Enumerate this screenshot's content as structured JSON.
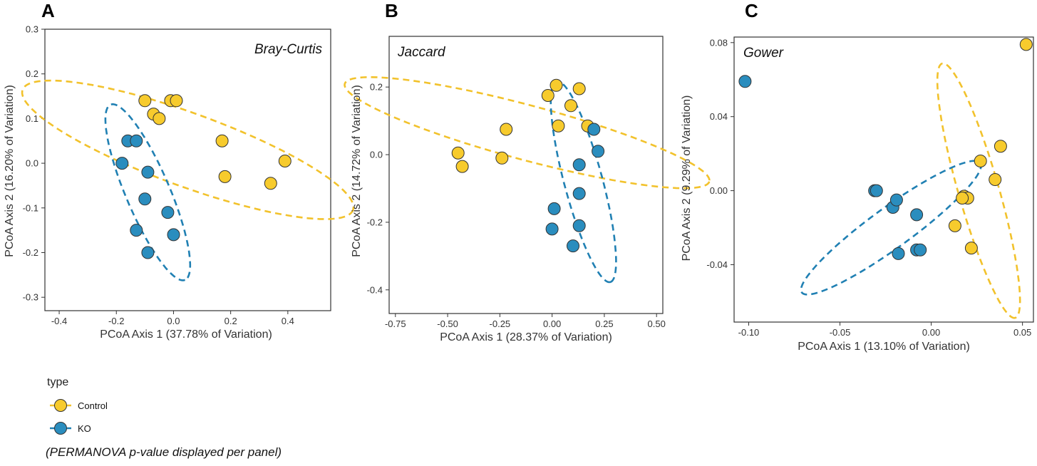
{
  "colors": {
    "control": "#F7CB2D",
    "ko": "#2A8DBE",
    "control_line": "#F2C22C",
    "ko_line": "#2080B3",
    "outline": "#333333"
  },
  "legend": {
    "title": "type",
    "entries": [
      {
        "label": "Control",
        "group": "control"
      },
      {
        "label": "KO",
        "group": "ko"
      }
    ]
  },
  "footnote": "(PERMANOVA p-value displayed per panel)",
  "chart_data": [
    {
      "type": "scatter",
      "panel_letter": "A",
      "title": "Bray-Curtis",
      "title_position": "top-right",
      "xlabel": "PCoA Axis 1 (37.78% of Variation)",
      "ylabel": "PCoA Axis 2 (16.20% of Variation)",
      "xlim": [
        -0.45,
        0.55
      ],
      "ylim": [
        -0.33,
        0.3
      ],
      "xticks": [
        -0.4,
        -0.2,
        0.0,
        0.2,
        0.4
      ],
      "xtick_labels": [
        "-0.4",
        "-0.2",
        "0.0",
        "0.2",
        "0.4"
      ],
      "yticks": [
        -0.3,
        -0.2,
        -0.1,
        0.0,
        0.1,
        0.2,
        0.3
      ],
      "ytick_labels": [
        "-0.3",
        "-0.2",
        "-0.1",
        "0.0",
        "0.1",
        "0.2",
        "0.3"
      ],
      "series": [
        {
          "name": "Control",
          "group": "control",
          "x": [
            -0.1,
            -0.07,
            -0.05,
            -0.01,
            0.01,
            0.17,
            0.18,
            0.34,
            0.39
          ],
          "y": [
            0.14,
            0.11,
            0.1,
            0.14,
            0.14,
            0.05,
            -0.03,
            -0.045,
            0.005
          ],
          "ellipse": {
            "cx": 0.05,
            "cy": 0.03,
            "rx": 0.48,
            "ry": 0.1,
            "angle": -20
          }
        },
        {
          "name": "KO",
          "group": "ko",
          "x": [
            -0.18,
            -0.16,
            -0.13,
            -0.09,
            -0.1,
            -0.02,
            0.0,
            -0.13,
            -0.09
          ],
          "y": [
            0.0,
            0.05,
            0.05,
            -0.02,
            -0.08,
            -0.11,
            -0.16,
            -0.15,
            -0.2
          ],
          "ellipse": {
            "cx": -0.09,
            "cy": -0.065,
            "rx": 0.26,
            "ry": 0.06,
            "angle": -67
          }
        }
      ]
    },
    {
      "type": "scatter",
      "panel_letter": "B",
      "title": "Jaccard",
      "title_position": "top-left",
      "xlabel": "PCoA Axis 1 (28.37% of Variation)",
      "ylabel": "PCoA Axis 2 (14.72% of Variation)",
      "xlim": [
        -0.78,
        0.53
      ],
      "ylim": [
        -0.47,
        0.35
      ],
      "xticks": [
        -0.75,
        -0.5,
        -0.25,
        0.0,
        0.25,
        0.5
      ],
      "xtick_labels": [
        "-0.75",
        "-0.50",
        "-0.25",
        "0.00",
        "0.25",
        "0.50"
      ],
      "yticks": [
        -0.4,
        -0.2,
        0.0,
        0.2
      ],
      "ytick_labels": [
        "-0.4",
        "-0.2",
        "0.0",
        "0.2"
      ],
      "series": [
        {
          "name": "Control",
          "group": "control",
          "x": [
            -0.45,
            -0.43,
            -0.24,
            -0.22,
            -0.02,
            0.02,
            0.03,
            0.09,
            0.13,
            0.17
          ],
          "y": [
            0.005,
            -0.035,
            -0.01,
            0.075,
            0.175,
            0.205,
            0.085,
            0.145,
            0.195,
            0.085
          ],
          "ellipse": {
            "cx": -0.12,
            "cy": 0.065,
            "rx": 0.69,
            "ry": 0.1,
            "angle": -15
          }
        },
        {
          "name": "KO",
          "group": "ko",
          "x": [
            0.0,
            0.01,
            0.1,
            0.13,
            0.13,
            0.13,
            0.2,
            0.22
          ],
          "y": [
            -0.22,
            -0.16,
            -0.27,
            -0.21,
            -0.115,
            -0.03,
            0.075,
            0.01
          ],
          "ellipse": {
            "cx": 0.15,
            "cy": -0.08,
            "rx": 0.38,
            "ry": 0.07,
            "angle": -75
          }
        }
      ]
    },
    {
      "type": "scatter",
      "panel_letter": "C",
      "title": "Gower",
      "title_position": "top-left",
      "xlabel": "PCoA Axis 1 (13.10% of Variation)",
      "ylabel": "PCoA Axis 2 (9.29% of Variation)",
      "xlim": [
        -0.108,
        0.056
      ],
      "ylim": [
        -0.071,
        0.083
      ],
      "xticks": [
        -0.1,
        -0.05,
        0.0,
        0.05
      ],
      "xtick_labels": [
        "-0.10",
        "-0.05",
        "0.00",
        "0.05"
      ],
      "yticks": [
        -0.04,
        0.0,
        0.04,
        0.08
      ],
      "ytick_labels": [
        "-0.04",
        "0.00",
        "0.04",
        "0.08"
      ],
      "series": [
        {
          "name": "Control",
          "group": "control",
          "x": [
            0.052,
            0.038,
            0.027,
            0.035,
            0.018,
            0.02,
            0.017,
            0.013,
            0.022
          ],
          "y": [
            0.079,
            0.024,
            0.016,
            0.006,
            -0.003,
            -0.004,
            -0.004,
            -0.019,
            -0.031
          ],
          "ellipse": {
            "cx": 0.026,
            "cy": 0.0,
            "rx": 0.072,
            "ry": 0.011,
            "angle": -74
          }
        },
        {
          "name": "KO",
          "group": "ko",
          "x": [
            -0.102,
            -0.031,
            -0.03,
            -0.021,
            -0.019,
            -0.008,
            -0.018,
            -0.008,
            -0.006
          ],
          "y": [
            0.059,
            0.0,
            0.0,
            -0.009,
            -0.005,
            -0.013,
            -0.034,
            -0.032,
            -0.032
          ],
          "ellipse": {
            "cx": -0.022,
            "cy": -0.02,
            "rx": 0.06,
            "ry": 0.011,
            "angle": 36
          }
        }
      ]
    }
  ]
}
